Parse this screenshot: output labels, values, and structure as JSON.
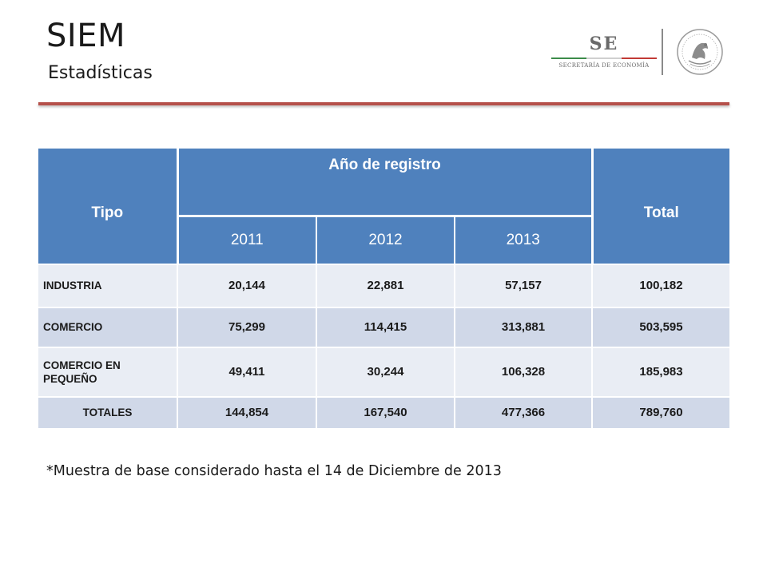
{
  "header": {
    "title": "SIEM",
    "subtitle": "Estadísticas"
  },
  "logos": {
    "se_letters": "SE",
    "se_name": "SECRETARÍA DE ECONOMÍA",
    "seal_icon": "mexican-coat-of-arms-seal"
  },
  "table": {
    "col_tipo": "Tipo",
    "col_year_group": "Año de registro",
    "col_total": "Total",
    "years": [
      "2011",
      "2012",
      "2013"
    ],
    "rows": [
      {
        "tipo": "INDUSTRIA",
        "v2011": "20,144",
        "v2012": "22,881",
        "v2013": "57,157",
        "total": "100,182"
      },
      {
        "tipo": "COMERCIO",
        "v2011": "75,299",
        "v2012": "114,415",
        "v2013": "313,881",
        "total": "503,595"
      },
      {
        "tipo": "COMERCIO EN PEQUEÑO",
        "v2011": "49,411",
        "v2012": "30,244",
        "v2013": "106,328",
        "total": "185,983"
      },
      {
        "tipo": "TOTALES",
        "v2011": "144,854",
        "v2012": "167,540",
        "v2013": "477,366",
        "total": "789,760"
      }
    ]
  },
  "footnote": "*Muestra de base considerado hasta el 14 de Diciembre de 2013",
  "colors": {
    "header_blue": "#4f81bd",
    "row_light": "#e9edf4",
    "row_dark": "#d0d8e8",
    "rule_red": "#b5504a"
  }
}
